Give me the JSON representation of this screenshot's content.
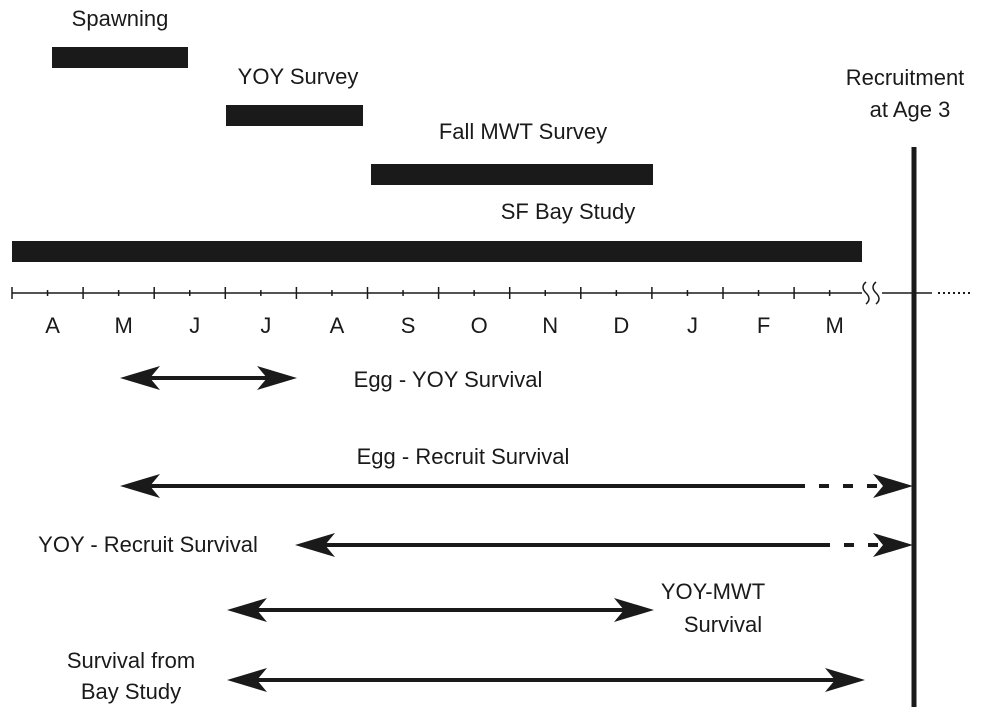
{
  "bars": [
    {
      "label": "Spawning"
    },
    {
      "label": "YOY Survey"
    },
    {
      "label": "Fall MWT Survey"
    },
    {
      "label": "SF Bay Study"
    }
  ],
  "recruitment": [
    "Recruitment",
    "at Age 3"
  ],
  "months": [
    "A",
    "M",
    "J",
    "J",
    "A",
    "S",
    "O",
    "N",
    "D",
    "J",
    "F",
    "M"
  ],
  "arrows": [
    {
      "label": [
        "Egg - YOY Survival"
      ]
    },
    {
      "label": [
        "Egg - Recruit Survival"
      ]
    },
    {
      "label": [
        "YOY - Recruit Survival"
      ]
    },
    {
      "label": [
        "YOY-MWT",
        "Survival"
      ]
    },
    {
      "label": [
        "Survival from",
        "Bay Study"
      ]
    }
  ]
}
